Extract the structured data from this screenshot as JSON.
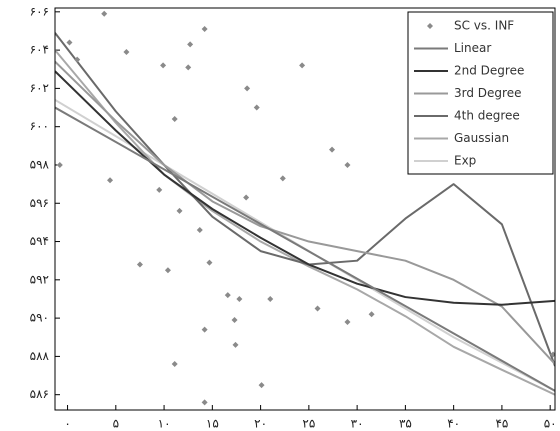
{
  "chart_data": {
    "type": "line",
    "xlim": [
      -1.3,
      50.5
    ],
    "ylim": [
      585.2,
      606.2
    ],
    "xticks": [
      {
        "value": 0,
        "label": "۰"
      },
      {
        "value": 5,
        "label": "۵"
      },
      {
        "value": 10,
        "label": "۱۰"
      },
      {
        "value": 15,
        "label": "۱۵"
      },
      {
        "value": 20,
        "label": "۲۰"
      },
      {
        "value": 25,
        "label": "۲۵"
      },
      {
        "value": 30,
        "label": "۳۰"
      },
      {
        "value": 35,
        "label": "۳۵"
      },
      {
        "value": 40,
        "label": "۴۰"
      },
      {
        "value": 45,
        "label": "۴۵"
      },
      {
        "value": 50,
        "label": "۵۰"
      }
    ],
    "yticks": [
      {
        "value": 586,
        "label": "۵۸۶"
      },
      {
        "value": 588,
        "label": "۵۸۸"
      },
      {
        "value": 590,
        "label": "۵۹۰"
      },
      {
        "value": 592,
        "label": "۵۹۲"
      },
      {
        "value": 594,
        "label": "۵۹۴"
      },
      {
        "value": 596,
        "label": "۵۹۶"
      },
      {
        "value": 598,
        "label": "۵۹۸"
      },
      {
        "value": 600,
        "label": "۶۰۰"
      },
      {
        "value": 602,
        "label": "۶۰۲"
      },
      {
        "value": 604,
        "label": "۶۰۴"
      },
      {
        "value": 606,
        "label": "۶۰۶"
      }
    ],
    "legend": "upper-right",
    "series": [
      {
        "name": "SC vs. INF",
        "type": "scatter",
        "color": "#8a8a8a",
        "x": [
          -0.8,
          0.2,
          1.0,
          3.8,
          4.4,
          6.1,
          9.9,
          11.1,
          12.7,
          14.2,
          12.5,
          7.5,
          10.4,
          14.7,
          11.1,
          14.2,
          16.6,
          17.3,
          17.4,
          17.8,
          18.5,
          18.6,
          19.6,
          20.1,
          22.3,
          21.0,
          24.3,
          25.9,
          27.4,
          29.0,
          29.0,
          31.5,
          14.2,
          9.5,
          11.6,
          13.7,
          50.3
        ],
        "values": [
          598.0,
          604.4,
          603.5,
          605.9,
          597.2,
          603.9,
          603.2,
          600.4,
          604.3,
          605.1,
          603.1,
          592.8,
          592.5,
          592.9,
          587.6,
          589.4,
          591.2,
          589.9,
          588.6,
          591.0,
          596.3,
          602.0,
          601.0,
          586.5,
          597.3,
          591.0,
          603.2,
          590.5,
          598.8,
          598.0,
          589.8,
          590.2,
          585.6,
          596.7,
          595.6,
          594.6,
          588.1
        ]
      },
      {
        "name": "Linear",
        "type": "line",
        "color": "#7a7a7a",
        "x": [
          -1.3,
          50.5
        ],
        "values": [
          601.0,
          586.2
        ]
      },
      {
        "name": "2nd Degree",
        "type": "line",
        "color": "#333333",
        "x": [
          -1.3,
          5,
          10,
          15,
          20,
          25,
          30,
          35,
          40,
          45,
          50.5
        ],
        "values": [
          602.9,
          599.8,
          597.5,
          595.7,
          594.2,
          592.8,
          591.8,
          591.1,
          590.8,
          590.7,
          590.9
        ]
      },
      {
        "name": "3rd Degree",
        "type": "line",
        "color": "#999999",
        "x": [
          -1.3,
          5,
          10,
          15,
          20,
          25,
          30,
          35,
          40,
          45,
          50.5
        ],
        "values": [
          603.4,
          600.3,
          598.0,
          596.1,
          594.8,
          594.0,
          593.5,
          593.0,
          592.0,
          590.6,
          587.6
        ]
      },
      {
        "name": "4th degree",
        "type": "line",
        "color": "#6a6a6a",
        "x": [
          -1.3,
          5,
          10,
          15,
          20,
          25,
          30,
          35,
          40,
          45,
          50.5
        ],
        "values": [
          604.9,
          600.8,
          598.0,
          595.3,
          593.5,
          592.8,
          593.0,
          595.2,
          597.0,
          594.9,
          587.5
        ]
      },
      {
        "name": "Gaussian",
        "type": "line",
        "color": "#a8a8a8",
        "x": [
          -1.3,
          5,
          10,
          15,
          20,
          25,
          30,
          35,
          40,
          45,
          50.5
        ],
        "values": [
          604.0,
          600.2,
          597.5,
          595.6,
          594.0,
          592.7,
          591.5,
          590.1,
          588.5,
          587.3,
          586.0
        ]
      },
      {
        "name": "Exp",
        "type": "line",
        "color": "#d0d0d0",
        "x": [
          -1.3,
          10,
          20,
          30,
          40,
          50.5
        ],
        "values": [
          601.4,
          598.0,
          595.0,
          592.0,
          589.0,
          586.2
        ]
      }
    ]
  }
}
